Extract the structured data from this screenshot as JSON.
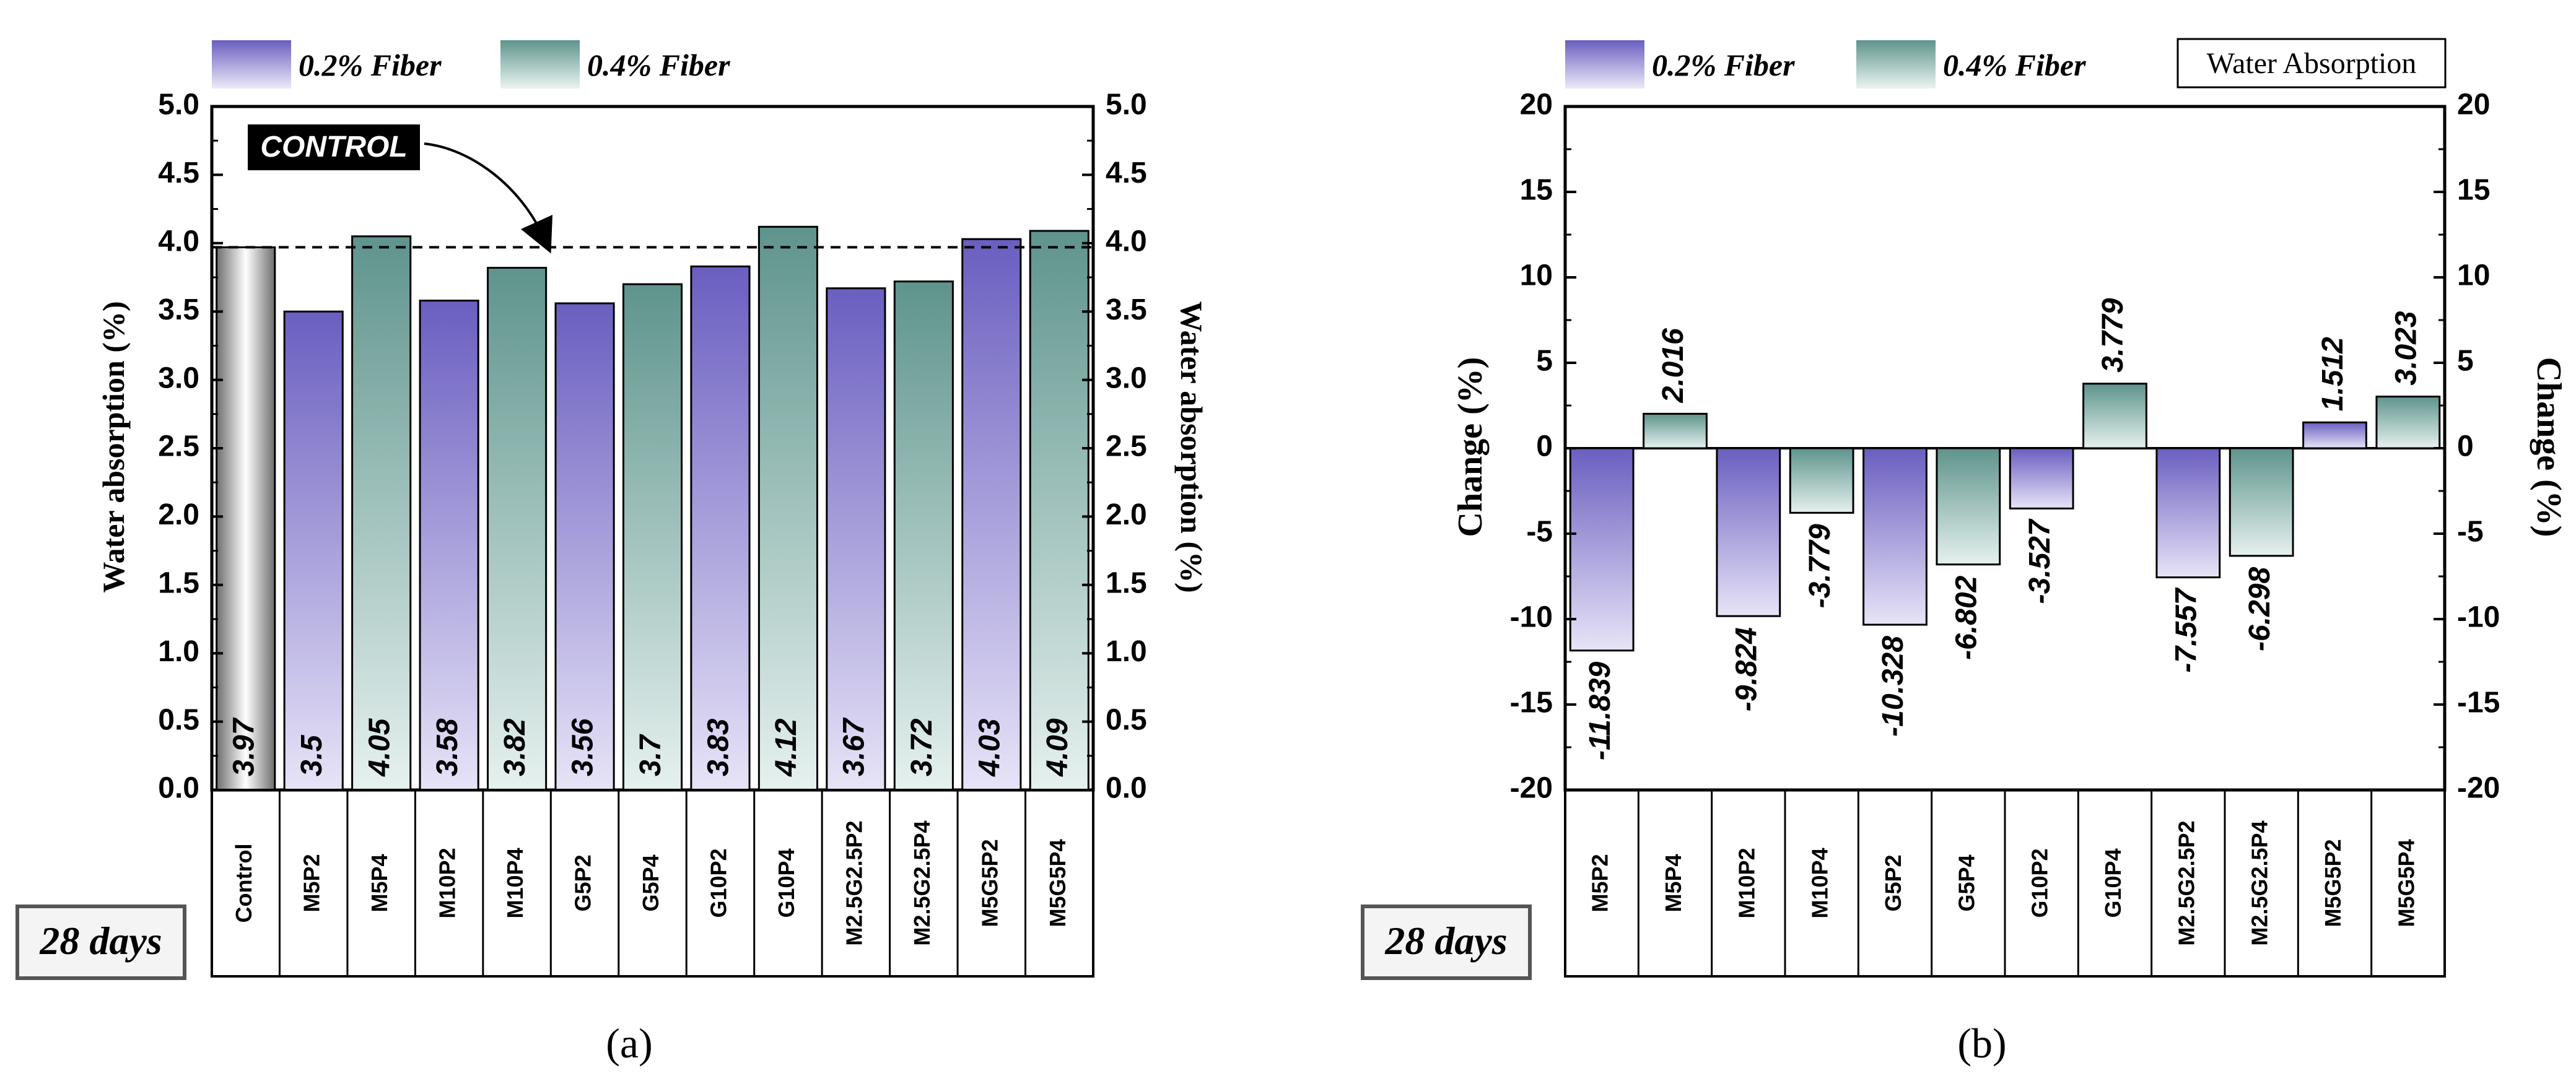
{
  "colors": {
    "fiber_02_top": "#6a5ec0",
    "fiber_02_bottom": "#e7e4f7",
    "fiber_04_top": "#5e948c",
    "fiber_04_bottom": "#e6f1ef",
    "control_dark": "#7a7a7a",
    "control_light": "#ffffff",
    "control_label_bg": "#000000",
    "control_label_text": "#ffffff",
    "axis": "#000000"
  },
  "legend": {
    "fiber_02": "0.2% Fiber",
    "fiber_04": "0.4% Fiber",
    "water_absorption": "Water Absorption"
  },
  "panel_a": {
    "caption": "(a)",
    "age_label": "28 days",
    "control_tag": "CONTROL"
  },
  "panel_b": {
    "caption": "(b)",
    "age_label": "28 days"
  },
  "chart_data": [
    {
      "type": "bar",
      "title": "",
      "ylabel": "Water absorption (%)",
      "ylabel_right": "Water absorption (%)",
      "ylim": [
        0.0,
        5.0
      ],
      "yticks": [
        "0.0",
        "0.5",
        "1.0",
        "1.5",
        "2.0",
        "2.5",
        "3.0",
        "3.5",
        "4.0",
        "4.5",
        "5.0"
      ],
      "categories": [
        "Control",
        "M5P2",
        "M5P4",
        "M10P2",
        "M10P4",
        "G5P2",
        "G5P4",
        "G10P2",
        "G10P4",
        "M2.5G2.5P2",
        "M2.5G2.5P4",
        "M5G5P2",
        "M5G5P4"
      ],
      "values": [
        3.97,
        3.5,
        4.05,
        3.58,
        3.82,
        3.56,
        3.7,
        3.83,
        4.12,
        3.67,
        3.72,
        4.03,
        4.09
      ],
      "labels": [
        "3.97",
        "3.5",
        "4.05",
        "3.58",
        "3.82",
        "3.56",
        "3.7",
        "3.83",
        "4.12",
        "3.67",
        "3.72",
        "4.03",
        "4.09"
      ],
      "groups": [
        "control",
        "0.2",
        "0.4",
        "0.2",
        "0.4",
        "0.2",
        "0.4",
        "0.2",
        "0.4",
        "0.2",
        "0.4",
        "0.2",
        "0.4"
      ],
      "reference_line": 3.97,
      "legend": [
        "0.2% Fiber",
        "0.4% Fiber"
      ]
    },
    {
      "type": "bar",
      "title": "",
      "ylabel": "Change (%)",
      "ylabel_right": "Change (%)",
      "ylim": [
        -20,
        20
      ],
      "yticks": [
        "-20",
        "-15",
        "-10",
        "-5",
        "0",
        "5",
        "10",
        "15",
        "20"
      ],
      "categories": [
        "M5P2",
        "M5P4",
        "M10P2",
        "M10P4",
        "G5P2",
        "G5P4",
        "G10P2",
        "G10P4",
        "M2.5G2.5P2",
        "M2.5G2.5P4",
        "M5G5P2",
        "M5G5P4"
      ],
      "values": [
        -11.839,
        2.016,
        -9.824,
        -3.779,
        -10.328,
        -6.802,
        -3.527,
        3.779,
        -7.557,
        -6.298,
        1.512,
        3.023
      ],
      "labels": [
        "-11.839",
        "2.016",
        "-9.824",
        "-3.779",
        "-10.328",
        "-6.802",
        "-3.527",
        "3.779",
        "-7.557",
        "-6.298",
        "1.512",
        "3.023"
      ],
      "groups": [
        "0.2",
        "0.4",
        "0.2",
        "0.4",
        "0.2",
        "0.4",
        "0.2",
        "0.4",
        "0.2",
        "0.4",
        "0.2",
        "0.4"
      ],
      "legend": [
        "0.2% Fiber",
        "0.4% Fiber",
        "Water Absorption"
      ]
    }
  ]
}
